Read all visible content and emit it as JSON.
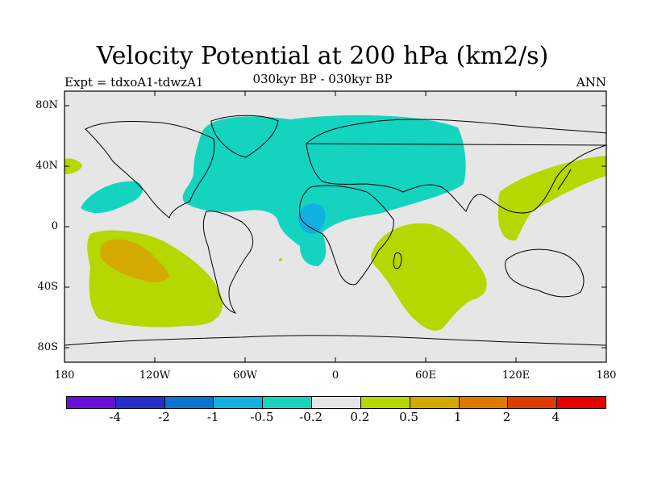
{
  "title": "Velocity Potential at 200 hPa (km2/s)",
  "subtitle_left": "Expt = tdxoA1-tdwzA1",
  "subtitle_center": "030kyr BP - 030kyr BP",
  "subtitle_right": "ANN",
  "axes": {
    "lat_labels": [
      "80N",
      "40N",
      "0",
      "40S",
      "80S"
    ],
    "lon_labels": [
      "180",
      "120W",
      "60W",
      "0",
      "60E",
      "120E",
      "180"
    ]
  },
  "colorbar": {
    "colors": [
      "#6a0fd8",
      "#2430c8",
      "#0a74d6",
      "#10b0e0",
      "#14d4c0",
      "#e6e6e6",
      "#b4d800",
      "#d4aa00",
      "#e07800",
      "#e03a00",
      "#e80000"
    ],
    "labels": [
      "-4",
      "-2",
      "-1",
      "-0.5",
      "-0.2",
      "0.2",
      "0.5",
      "1",
      "2",
      "4"
    ]
  },
  "colors": {
    "background_field": "#e6e6e6",
    "negative_weak": "#14d4c0",
    "negative_mid": "#10b0e0",
    "positive_weak": "#b4d800",
    "positive_mid": "#d4aa00"
  }
}
